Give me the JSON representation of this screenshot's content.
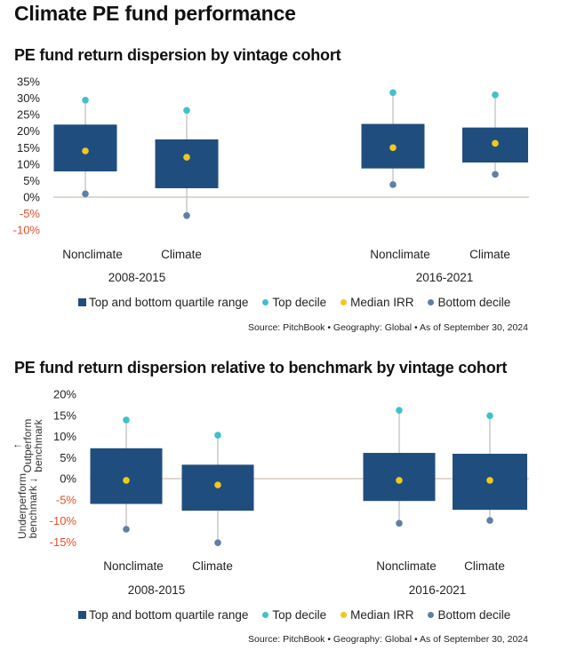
{
  "page_title": "Climate PE fund performance",
  "legend": {
    "items": [
      {
        "label": "Top and bottom quartile range",
        "shape": "square",
        "color": "#1f4e7e"
      },
      {
        "label": "Top decile",
        "shape": "dot",
        "color": "#3fc1c9"
      },
      {
        "label": "Median IRR",
        "shape": "dot",
        "color": "#f2c81b"
      },
      {
        "label": "Bottom decile",
        "shape": "dot",
        "color": "#5f7fa6"
      }
    ]
  },
  "source": "Source: PitchBook  •  Geography: Global  •  As of September 30, 2024",
  "colors": {
    "box": "#1f4e7e",
    "top_decile": "#3fc1c9",
    "median": "#f2c81b",
    "bottom_decile": "#5f7fa6",
    "whisker": "#c8c8c8",
    "baseline": "#c9bfb3",
    "negative_tick": "#e0502a"
  },
  "axis_notes": {
    "outperform": "Outperform benchmark",
    "underperform": "Underperform benchmark"
  },
  "chart_data": [
    {
      "type": "box",
      "title": "PE fund return dispersion by vintage cohort",
      "xlabel": "",
      "ylabel": "",
      "ylim": [
        -10,
        35
      ],
      "yticks": [
        35,
        30,
        25,
        20,
        15,
        10,
        5,
        0,
        -5,
        -10
      ],
      "ytick_labels": [
        "35%",
        "30%",
        "25%",
        "20%",
        "15%",
        "10%",
        "5%",
        "0%",
        "-5%",
        "-10%"
      ],
      "grid": false,
      "legend_position": "bottom",
      "groups": [
        {
          "label": "2008-2015",
          "categories": [
            {
              "label": "Nonclimate",
              "top_decile": 29.4,
              "q3": 22.0,
              "median": 14.0,
              "q1": 7.8,
              "bottom_decile": 1.0
            },
            {
              "label": "Climate",
              "top_decile": 26.3,
              "q3": 17.5,
              "median": 12.1,
              "q1": 2.7,
              "bottom_decile": -5.6
            }
          ]
        },
        {
          "label": "2016-2021",
          "categories": [
            {
              "label": "Nonclimate",
              "top_decile": 31.7,
              "q3": 22.2,
              "median": 15.0,
              "q1": 8.7,
              "bottom_decile": 3.8
            },
            {
              "label": "Climate",
              "top_decile": 31.0,
              "q3": 21.1,
              "median": 16.3,
              "q1": 10.5,
              "bottom_decile": 6.9
            }
          ]
        }
      ]
    },
    {
      "type": "box",
      "title": "PE fund return dispersion relative to benchmark by vintage cohort",
      "xlabel": "",
      "ylabel": "Underperform benchmark — Outperform benchmark",
      "ylim": [
        -15,
        20
      ],
      "yticks": [
        20,
        15,
        10,
        5,
        0,
        -5,
        -10,
        -15
      ],
      "ytick_labels": [
        "20%",
        "15%",
        "10%",
        "5%",
        "0%",
        "-5%",
        "-10%",
        "-15%"
      ],
      "grid": false,
      "legend_position": "bottom",
      "groups": [
        {
          "label": "2008-2015",
          "categories": [
            {
              "label": "Nonclimate",
              "top_decile": 13.9,
              "q3": 7.2,
              "median": -0.4,
              "q1": -6.0,
              "bottom_decile": -12.0
            },
            {
              "label": "Climate",
              "top_decile": 10.3,
              "q3": 3.3,
              "median": -1.5,
              "q1": -7.6,
              "bottom_decile": -15.2
            }
          ]
        },
        {
          "label": "2016-2021",
          "categories": [
            {
              "label": "Nonclimate",
              "top_decile": 16.2,
              "q3": 6.1,
              "median": -0.4,
              "q1": -5.3,
              "bottom_decile": -10.6
            },
            {
              "label": "Climate",
              "top_decile": 14.9,
              "q3": 5.9,
              "median": -0.4,
              "q1": -7.4,
              "bottom_decile": -9.9
            }
          ]
        }
      ]
    }
  ]
}
